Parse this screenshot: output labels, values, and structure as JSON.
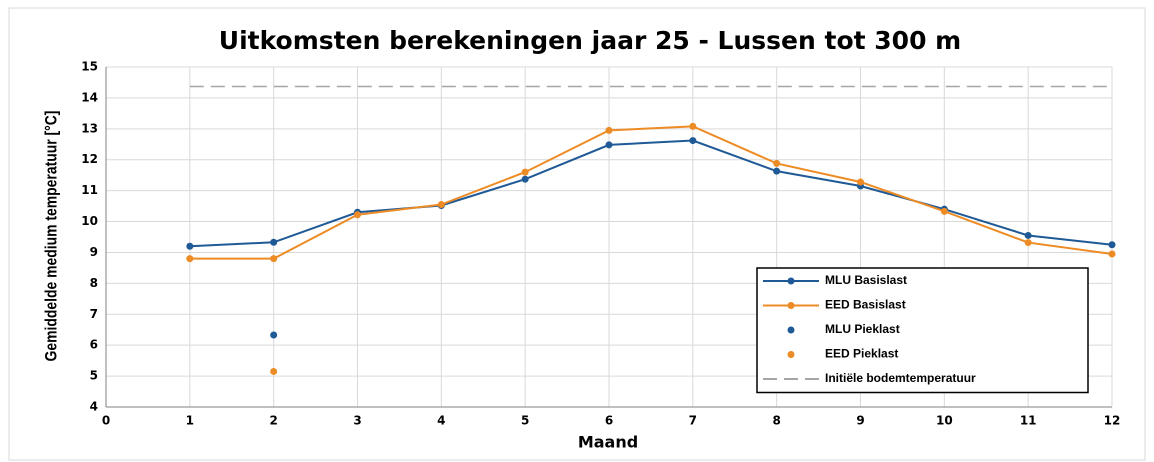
{
  "chart_data": {
    "type": "line",
    "title": "Uitkomsten berekeningen jaar 25 - Lussen tot 300 m",
    "x_label": "Maand",
    "y_label": "Gemiddelde medium temperatuur [°C]",
    "xlim": [
      0,
      12
    ],
    "xticks": [
      0,
      1,
      2,
      3,
      4,
      5,
      6,
      7,
      8,
      9,
      10,
      11,
      12
    ],
    "ylim": [
      4,
      15
    ],
    "yticks": [
      4,
      5,
      6,
      7,
      8,
      9,
      10,
      11,
      12,
      13,
      14,
      15
    ],
    "grid": true,
    "legend": "lower right",
    "series": [
      {
        "name": "MLU Basislast",
        "color": "#1f5a96",
        "mode": "lines+markers",
        "x": [
          1,
          2,
          3,
          4,
          5,
          6,
          7,
          8,
          9,
          10,
          11,
          12
        ],
        "values": [
          9.2,
          9.33,
          10.3,
          10.52,
          11.37,
          12.48,
          12.62,
          11.63,
          11.15,
          10.4,
          9.55,
          9.25
        ]
      },
      {
        "name": "EED Basislast",
        "color": "#ed8b25",
        "mode": "lines+markers",
        "x": [
          1,
          2,
          3,
          4,
          5,
          6,
          7,
          8,
          9,
          10,
          11,
          12
        ],
        "values": [
          8.8,
          8.8,
          10.22,
          10.55,
          11.6,
          12.95,
          13.08,
          11.88,
          11.28,
          10.33,
          9.32,
          8.95
        ]
      },
      {
        "name": "MLU Pieklast",
        "color": "#1f5a96",
        "mode": "markers",
        "x": [
          2
        ],
        "values": [
          6.33
        ]
      },
      {
        "name": "EED Pieklast",
        "color": "#ed8b25",
        "mode": "markers",
        "x": [
          2
        ],
        "values": [
          5.15
        ]
      },
      {
        "name": "Initiële bodemtemperatuur",
        "color": "#a6a6a6",
        "mode": "dashed",
        "x": [
          1,
          12
        ],
        "values": [
          14.37,
          14.37
        ]
      }
    ]
  }
}
